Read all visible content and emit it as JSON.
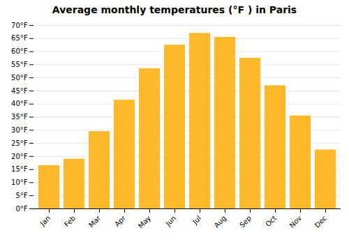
{
  "chart_data": {
    "type": "bar",
    "title": "Average monthly temperatures (°F ) in Paris",
    "categories": [
      "Jan",
      "Feb",
      "Mar",
      "Apr",
      "May",
      "Jun",
      "Jul",
      "Aug",
      "Sep",
      "Oct",
      "Nov",
      "Dec"
    ],
    "values": [
      16.5,
      19.0,
      29.5,
      41.5,
      53.5,
      62.5,
      67.0,
      65.5,
      57.5,
      47.0,
      35.5,
      22.5
    ],
    "color": "#FDB929",
    "ylim": [
      0,
      70
    ],
    "yticks": [
      {
        "value": 0,
        "label": "0°F"
      },
      {
        "value": 5,
        "label": "5°F"
      },
      {
        "value": 10,
        "label": "10°F"
      },
      {
        "value": 15,
        "label": "15°F"
      },
      {
        "value": 20,
        "label": "20°F"
      },
      {
        "value": 25,
        "label": "25°F"
      },
      {
        "value": 30,
        "label": "30°F"
      },
      {
        "value": 35,
        "label": "35°F"
      },
      {
        "value": 40,
        "label": "40°F"
      },
      {
        "value": 45,
        "label": "45°F"
      },
      {
        "value": 50,
        "label": "50°F"
      },
      {
        "value": 55,
        "label": "55°F"
      },
      {
        "value": 60,
        "label": "60°F"
      },
      {
        "value": 65,
        "label": "65°F"
      },
      {
        "value": 70,
        "label": "70°F"
      }
    ],
    "grid": true
  }
}
